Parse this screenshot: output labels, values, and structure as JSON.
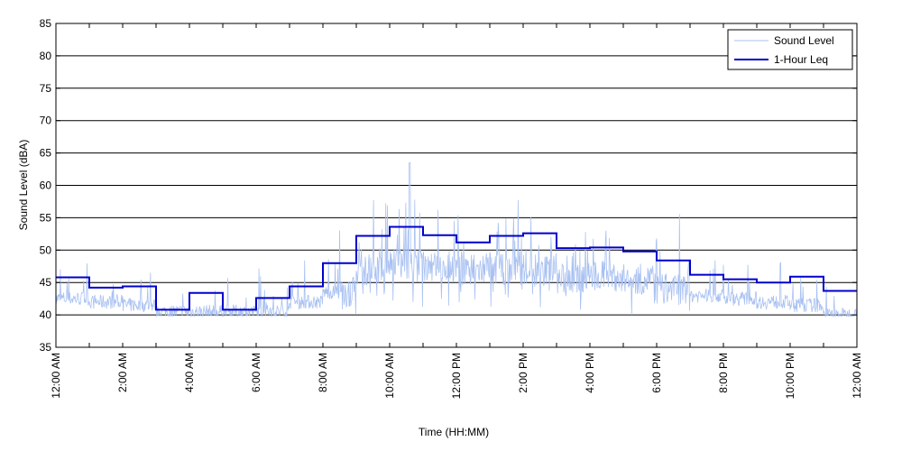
{
  "chart_data": {
    "type": "line",
    "title": "",
    "xlabel": "Time (HH:MM)",
    "ylabel": "Sound Level (dBA)",
    "xlim": [
      0,
      24
    ],
    "ylim": [
      35,
      85
    ],
    "yticks": [
      35,
      40,
      45,
      50,
      55,
      60,
      65,
      70,
      75,
      80,
      85
    ],
    "xticks": [
      0,
      2,
      4,
      6,
      8,
      10,
      12,
      14,
      16,
      18,
      20,
      22,
      24
    ],
    "xtick_labels": [
      "12:00 AM",
      "2:00 AM",
      "4:00 AM",
      "6:00 AM",
      "8:00 AM",
      "10:00 AM",
      "12:00 PM",
      "2:00 PM",
      "4:00 PM",
      "6:00 PM",
      "8:00 PM",
      "10:00 PM",
      "12:00 AM"
    ],
    "grid": "horizontal",
    "legend_position": "top-right",
    "series": [
      {
        "name": "Sound Level",
        "color": "#a9c1f2",
        "style": "thin-noisy-line",
        "hourly_baseline": [
          42.5,
          42,
          41.5,
          40.5,
          40.5,
          40.5,
          40.5,
          42,
          43.5,
          47,
          48,
          47.5,
          47,
          47,
          47,
          45.5,
          46,
          45.5,
          44,
          43,
          42.5,
          42,
          41.5,
          40
        ],
        "peak": 63.5
      },
      {
        "name": "1-Hour Leq",
        "color": "#0000cc",
        "style": "step",
        "x": [
          0,
          1,
          2,
          3,
          4,
          5,
          6,
          7,
          8,
          9,
          10,
          11,
          12,
          13,
          14,
          15,
          16,
          17,
          18,
          19,
          20,
          21,
          22,
          23
        ],
        "values": [
          45.8,
          44.2,
          44.4,
          40.8,
          43.4,
          40.8,
          42.6,
          44.4,
          48,
          52.2,
          53.6,
          52.3,
          51.2,
          52.2,
          52.6,
          50.3,
          50.4,
          49.8,
          48.4,
          46.2,
          45.5,
          45,
          45.9,
          43.7
        ]
      }
    ]
  }
}
